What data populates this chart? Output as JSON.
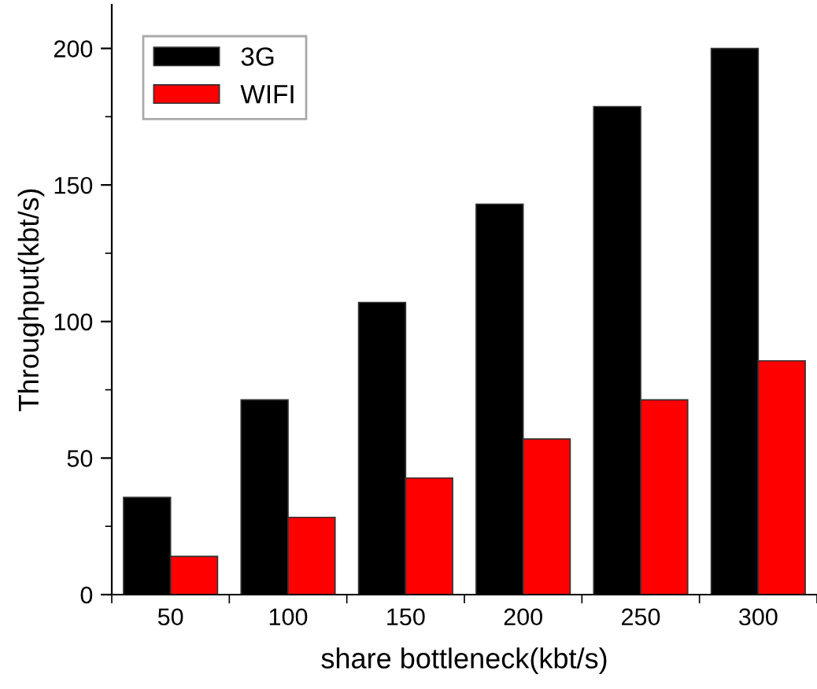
{
  "chart_data": {
    "type": "bar",
    "xlabel": "share bottleneck(kbt/s)",
    "ylabel": "Throughput(kbt/s)",
    "categories": [
      "50",
      "100",
      "150",
      "200",
      "250",
      "300"
    ],
    "series": [
      {
        "name": "3G",
        "color": "#000000",
        "values": [
          35.6,
          71.3,
          107,
          143,
          178.7,
          200
        ]
      },
      {
        "name": "WIFI",
        "color": "#ff0000",
        "values": [
          14,
          28.3,
          42.7,
          57,
          71.3,
          85.6
        ]
      }
    ],
    "ylim": [
      0,
      216
    ],
    "yticks": [
      0,
      50,
      100,
      150,
      200
    ],
    "grid": false,
    "legend": "top left"
  }
}
